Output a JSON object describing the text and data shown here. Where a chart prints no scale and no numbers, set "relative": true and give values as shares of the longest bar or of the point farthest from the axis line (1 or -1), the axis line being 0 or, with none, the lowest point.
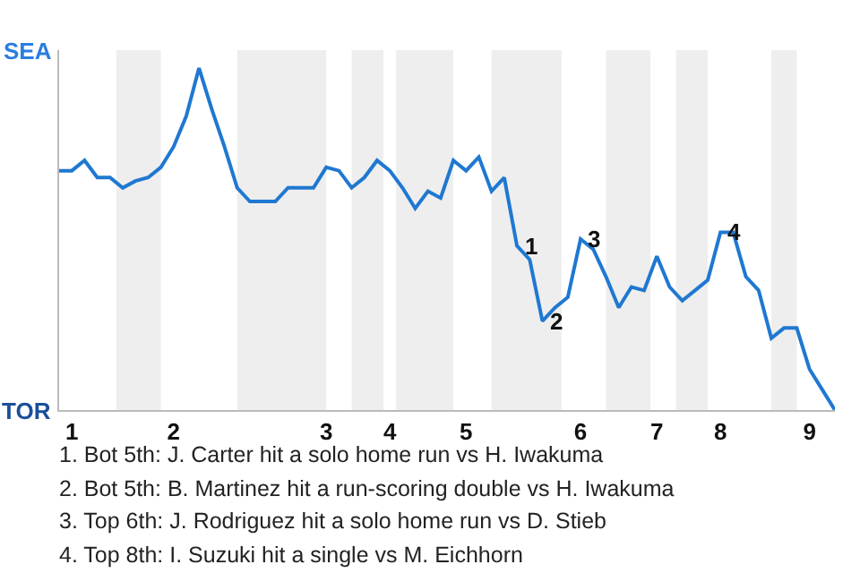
{
  "chart_data": {
    "type": "line",
    "relative": true,
    "categories": [
      null,
      "1",
      null,
      null,
      null,
      null,
      null,
      null,
      null,
      "2",
      null,
      null,
      null,
      null,
      null,
      null,
      null,
      null,
      null,
      null,
      null,
      "3",
      null,
      null,
      null,
      null,
      "4",
      null,
      null,
      null,
      null,
      null,
      "5",
      null,
      null,
      null,
      null,
      null,
      null,
      null,
      null,
      "6",
      null,
      null,
      null,
      null,
      null,
      "7",
      null,
      null,
      null,
      null,
      "8",
      null,
      null,
      null,
      null,
      null,
      null,
      "9",
      null,
      null
    ],
    "series": [
      {
        "color": "#1f78d1",
        "values": [
          0.7,
          0.7,
          0.73,
          0.68,
          0.68,
          0.65,
          0.67,
          0.68,
          0.71,
          0.77,
          0.86,
          1,
          0.88,
          0.77,
          0.65,
          0.61,
          0.61,
          0.61,
          0.65,
          0.65,
          0.65,
          0.71,
          0.7,
          0.65,
          0.68,
          0.73,
          0.7,
          0.65,
          0.59,
          0.64,
          0.62,
          0.73,
          0.7,
          0.74,
          0.64,
          0.68,
          0.48,
          0.44,
          0.26,
          0.3,
          0.33,
          0.5,
          0.47,
          0.39,
          0.3,
          0.36,
          0.35,
          0.45,
          0.36,
          0.32,
          0.35,
          0.38,
          0.52,
          0.52,
          0.39,
          0.35,
          0.21,
          0.24,
          0.24,
          0.12,
          0.06,
          0
        ]
      }
    ],
    "marker": "none",
    "line_style": "solid",
    "annotations": [
      "SEA",
      "TOR",
      {
        "text": "1",
        "y": 0.48
      },
      {
        "text": "2",
        "y": 0.26
      },
      {
        "text": "3",
        "y": 0.5
      },
      {
        "text": "4",
        "y": 0.52
      },
      "1. Bot 5th: J. Carter hit a solo home run vs H. Iwakuma",
      "2. Bot 5th: B. Martinez hit a run-scoring double vs H. Iwakuma",
      "3. Top 6th: J. Rodriguez hit a solo home run vs D. Stieb",
      "4. Top 8th: I. Suzuki hit a single vs M. Eichhorn"
    ]
  }
}
